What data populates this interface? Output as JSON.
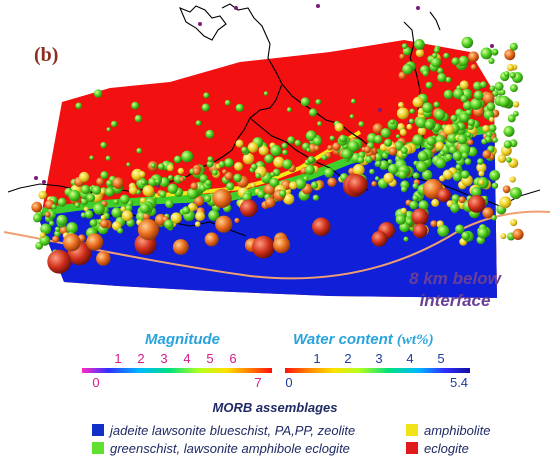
{
  "panel_label": "(b)",
  "depth_note": {
    "line1": "8 km below",
    "line2": "interface"
  },
  "magnitude": {
    "title": "Magnitude",
    "ticks": [
      "1",
      "2",
      "3",
      "4",
      "5",
      "6"
    ],
    "min_label": "0",
    "max_label": "7"
  },
  "water": {
    "title": "Water content",
    "unit": "(wt%)",
    "ticks": [
      "1",
      "2",
      "3",
      "4",
      "5"
    ],
    "min_label": "0",
    "max_label": "5.4"
  },
  "legend": {
    "title": "MORB assemblages",
    "items": [
      {
        "label": "jadeite lawsonite blueschist, PA,PP, zeolite",
        "color": "#1030c8"
      },
      {
        "label": "amphibolite",
        "color": "#f2e21a"
      },
      {
        "label": "greenschist, lawsonite amphibole eclogite",
        "color": "#5fe030"
      },
      {
        "label": "eclogite",
        "color": "#e01a1a"
      }
    ]
  },
  "colors": {
    "red_zone": "#f21010",
    "blue_zone": "#1020d8",
    "coastline": "#000000",
    "trench_line": "#f0a070",
    "volcano_dots": "#7a1a7a"
  }
}
